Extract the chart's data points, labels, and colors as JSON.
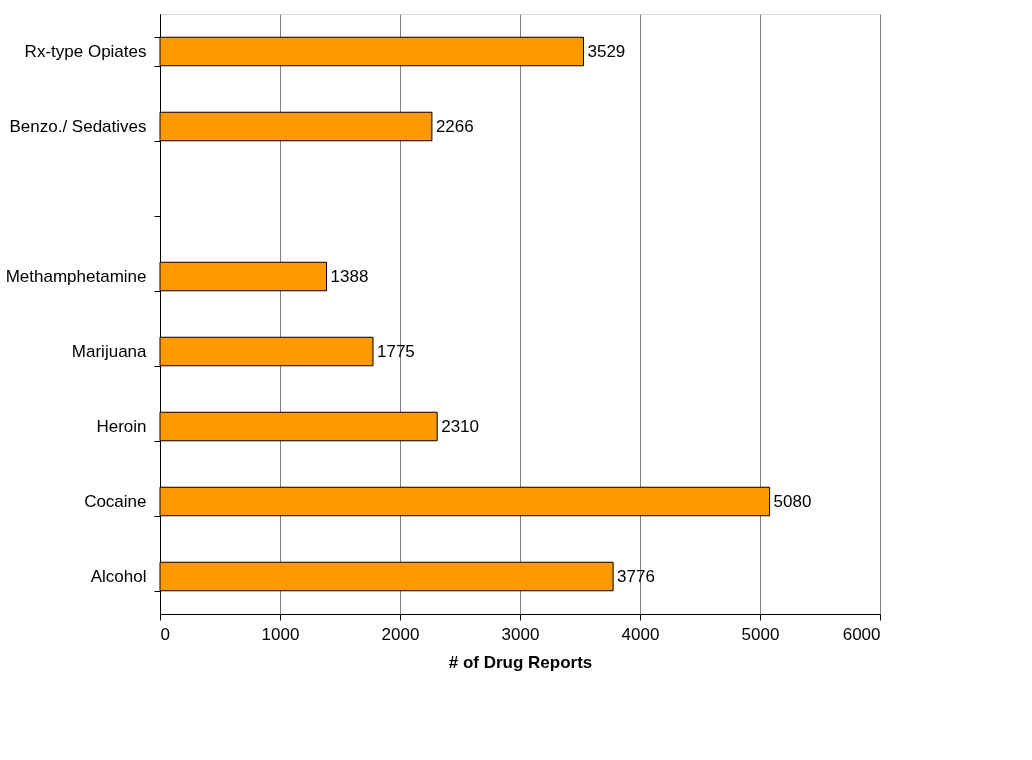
{
  "chart_data": {
    "type": "bar",
    "orientation": "horizontal",
    "xlabel": "# of Drug Reports",
    "categories": [
      "Rx-type Opiates",
      "Benzo./ Sedatives",
      null,
      "Methamphetamine",
      "Marijuana",
      "Heroin",
      "Cocaine",
      "Alcohol"
    ],
    "values": [
      3529,
      2266,
      null,
      1388,
      1775,
      2310,
      5080,
      3776
    ],
    "color": "#ff9900",
    "xlim": [
      0,
      6000
    ],
    "xticks": [
      0,
      1000,
      2000,
      3000,
      4000,
      5000,
      6000
    ],
    "grid": "x",
    "data_labels": true
  }
}
